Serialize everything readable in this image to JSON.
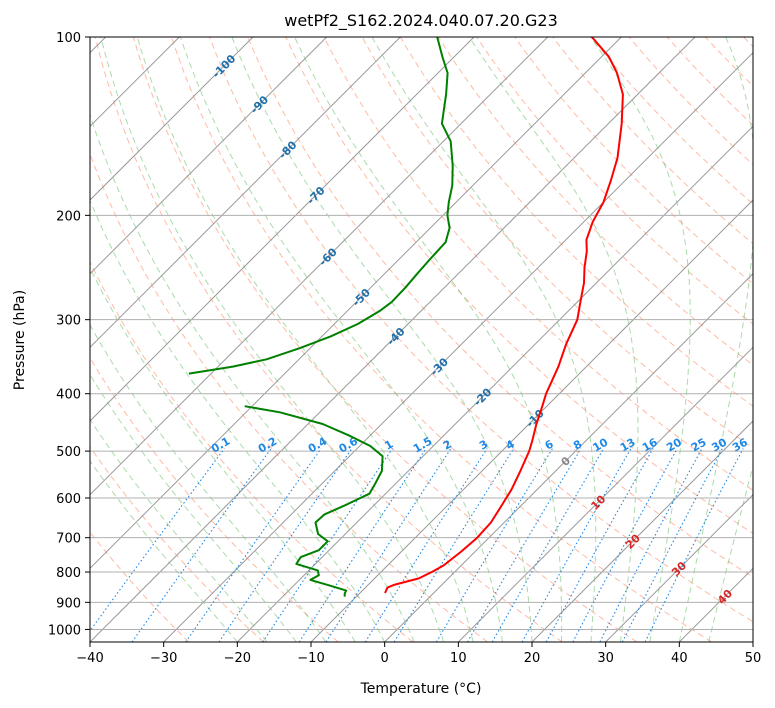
{
  "chart_data": {
    "type": "skew-t log-p",
    "title": "wetPf2_S162.2024.040.07.20.G23",
    "xlabel": "Temperature (°C)",
    "ylabel": "Pressure (hPa)",
    "xlim": [
      -40,
      50
    ],
    "ylim": [
      1050,
      100
    ],
    "x_ticks": [
      -40,
      -30,
      -20,
      -10,
      0,
      10,
      20,
      30,
      40,
      50
    ],
    "y_ticks": [
      100,
      200,
      300,
      400,
      500,
      600,
      700,
      800,
      900,
      1000
    ],
    "grid": true,
    "colors": {
      "temperature": "#ff0000",
      "dewpoint": "#008000",
      "isotherm": "#999999",
      "dry_adiabat": "#ff8c69",
      "moist_adiabat": "#66bb66",
      "mixing_ratio": "#1e88e5",
      "isotherm_label": "#1f6faa",
      "cold_label": "#888888",
      "warm_label": "#d62728"
    },
    "isotherm_labels": {
      "cold": [
        "-100",
        "-90",
        "-80",
        "-70",
        "-60",
        "-50",
        "-40",
        "-30",
        "-20",
        "-10"
      ],
      "zero": "0",
      "warm": [
        "10",
        "20",
        "30",
        "40"
      ]
    },
    "mixing_ratio_labels": [
      "0.1",
      "0.2",
      "0.4",
      "0.6",
      "1",
      "1.5",
      "2",
      "3",
      "4",
      "6",
      "8",
      "10",
      "13",
      "16",
      "20",
      "25",
      "30",
      "36"
    ],
    "series": [
      {
        "key": "temperature",
        "points": [
          [
            868,
            -6.6
          ],
          [
            850,
            -7.0
          ],
          [
            840,
            -6.4
          ],
          [
            820,
            -4.0
          ],
          [
            800,
            -3.1
          ],
          [
            780,
            -2.4
          ],
          [
            740,
            -1.9
          ],
          [
            700,
            -1.6
          ],
          [
            660,
            -1.8
          ],
          [
            620,
            -2.6
          ],
          [
            580,
            -3.5
          ],
          [
            540,
            -4.8
          ],
          [
            500,
            -6.3
          ],
          [
            480,
            -7.3
          ],
          [
            450,
            -9.0
          ],
          [
            420,
            -10.6
          ],
          [
            400,
            -11.8
          ],
          [
            360,
            -13.8
          ],
          [
            330,
            -15.8
          ],
          [
            300,
            -17.6
          ],
          [
            280,
            -19.6
          ],
          [
            260,
            -21.7
          ],
          [
            245,
            -23.7
          ],
          [
            230,
            -25.6
          ],
          [
            220,
            -27.2
          ],
          [
            205,
            -28.8
          ],
          [
            190,
            -30.0
          ],
          [
            175,
            -31.9
          ],
          [
            160,
            -34.1
          ],
          [
            140,
            -38.2
          ],
          [
            125,
            -42.0
          ],
          [
            115,
            -45.7
          ],
          [
            108,
            -49.0
          ],
          [
            100,
            -54.0
          ]
        ]
      },
      {
        "key": "dewpoint",
        "points": [
          [
            880,
            -11.6
          ],
          [
            870,
            -12.0
          ],
          [
            860,
            -12.2
          ],
          [
            845,
            -14.8
          ],
          [
            825,
            -18.5
          ],
          [
            810,
            -18.0
          ],
          [
            795,
            -18.8
          ],
          [
            775,
            -22.6
          ],
          [
            755,
            -22.9
          ],
          [
            735,
            -21.4
          ],
          [
            710,
            -21.4
          ],
          [
            690,
            -23.7
          ],
          [
            660,
            -25.6
          ],
          [
            640,
            -25.5
          ],
          [
            615,
            -23.8
          ],
          [
            590,
            -22.2
          ],
          [
            570,
            -22.7
          ],
          [
            540,
            -23.6
          ],
          [
            510,
            -25.5
          ],
          [
            490,
            -28.6
          ],
          [
            470,
            -33.0
          ],
          [
            450,
            -38.0
          ],
          [
            430,
            -45.4
          ],
          [
            420,
            -51.0
          ]
        ]
      },
      {
        "key": "dewpoint",
        "points": [
          [
            370,
            -63.0
          ],
          [
            360,
            -58.0
          ],
          [
            350,
            -54.4
          ],
          [
            335,
            -51.4
          ],
          [
            320,
            -48.8
          ],
          [
            305,
            -46.8
          ],
          [
            290,
            -45.6
          ],
          [
            280,
            -45.2
          ],
          [
            265,
            -45.3
          ],
          [
            250,
            -45.6
          ],
          [
            238,
            -45.8
          ],
          [
            222,
            -46.0
          ],
          [
            210,
            -47.4
          ],
          [
            200,
            -49.4
          ],
          [
            190,
            -51.0
          ],
          [
            178,
            -52.8
          ],
          [
            165,
            -55.4
          ],
          [
            150,
            -59.0
          ],
          [
            140,
            -62.6
          ],
          [
            125,
            -66.0
          ],
          [
            115,
            -68.7
          ],
          [
            108,
            -71.6
          ],
          [
            100,
            -75.0
          ]
        ]
      }
    ]
  }
}
